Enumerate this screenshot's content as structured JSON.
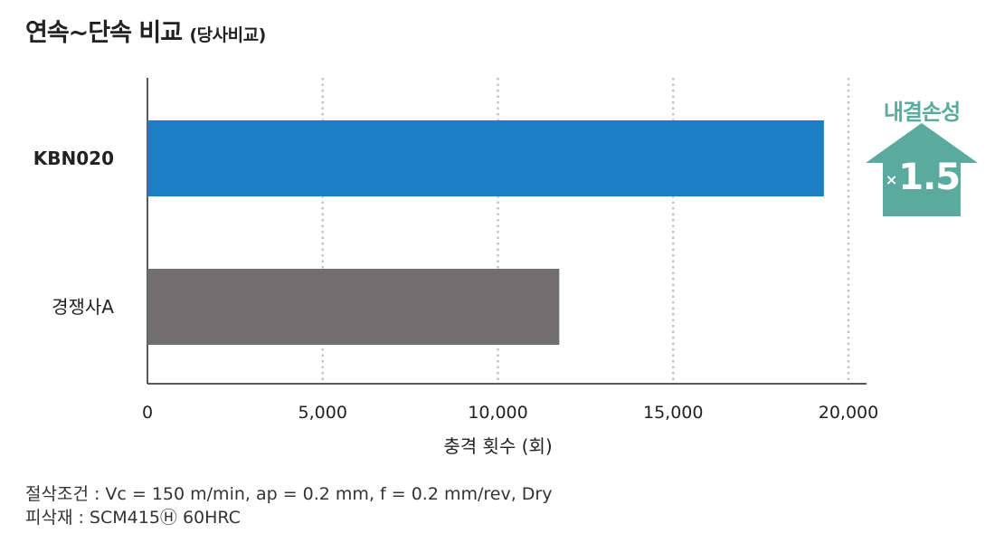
{
  "title": {
    "main": "연속~단속 비교",
    "sub": "(당사비교)"
  },
  "chart_data": {
    "type": "bar",
    "orientation": "horizontal",
    "categories": [
      "KBN020",
      "경쟁사A"
    ],
    "values": [
      19300,
      11750
    ],
    "bar_colors": [
      "#1a7fc4",
      "#716f70"
    ],
    "xlabel": "충격 횟수 (회)",
    "xlim": [
      0,
      20000
    ],
    "xticks": [
      0,
      5000,
      10000,
      15000,
      20000
    ],
    "xtick_labels": [
      "0",
      "5,000",
      "10,000",
      "15,000",
      "20,000"
    ],
    "grid": "vertical dotted"
  },
  "badge": {
    "label": "내결손성",
    "multiplier_prefix": "×",
    "multiplier_value": "1.5",
    "color": "#5aab9e"
  },
  "notes": {
    "conditions": "절삭조건 : Vc = 150 m/min, ap = 0.2 mm, f = 0.2 mm/rev,  Dry",
    "material": "피삭재 : SCM415Ⓗ   60HRC"
  }
}
